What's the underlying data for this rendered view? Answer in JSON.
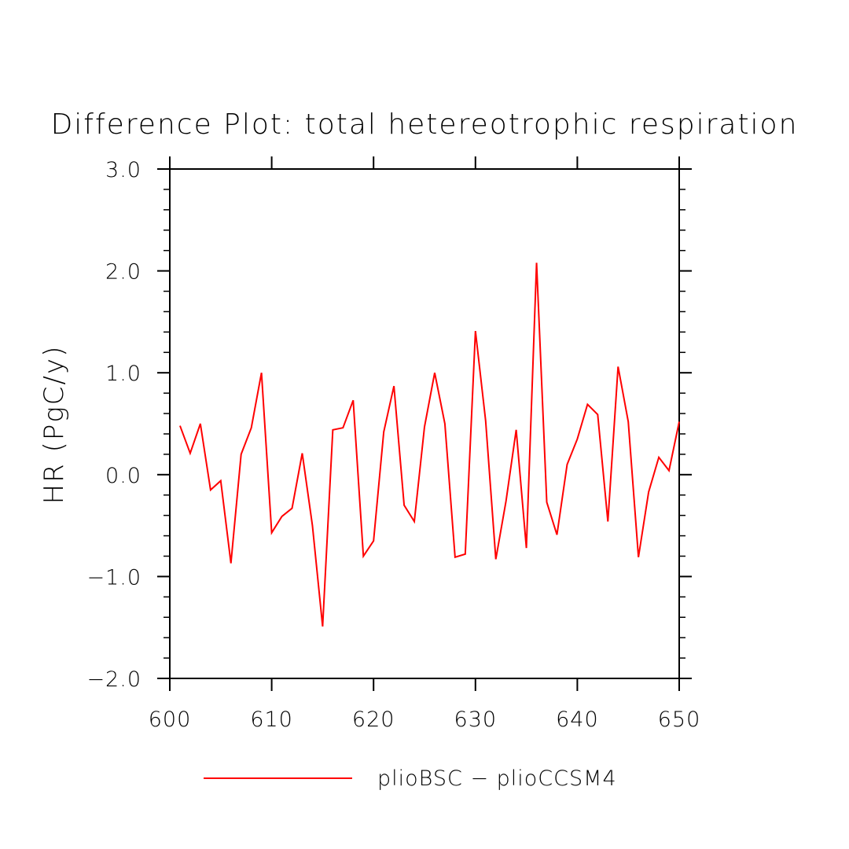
{
  "chart_data": {
    "type": "line",
    "title": "Difference Plot: total hetereotrophic respiration",
    "xlabel": "",
    "ylabel": "HR  (PgC/y)",
    "xlim": [
      600,
      650
    ],
    "ylim": [
      -2.0,
      3.0
    ],
    "x_ticks": [
      600,
      610,
      620,
      630,
      640,
      650
    ],
    "x_tick_labels": [
      "600",
      "610",
      "620",
      "630",
      "640",
      "650"
    ],
    "y_ticks": [
      -2.0,
      -1.0,
      0.0,
      1.0,
      2.0,
      3.0
    ],
    "y_tick_labels": [
      "−2.0",
      "−1.0",
      "0.0",
      "1.0",
      "2.0",
      "3.0"
    ],
    "grid": false,
    "legend_position": "bottom",
    "series": [
      {
        "name": "plioBSC − plioCCSM4",
        "color": "#ff0000",
        "x": [
          601,
          602,
          603,
          604,
          605,
          606,
          607,
          608,
          609,
          610,
          611,
          612,
          613,
          614,
          615,
          616,
          617,
          618,
          619,
          620,
          621,
          622,
          623,
          624,
          625,
          626,
          627,
          628,
          629,
          630,
          631,
          632,
          633,
          634,
          635,
          636,
          637,
          638,
          639,
          640,
          641,
          642,
          643,
          644,
          645,
          646,
          647,
          648,
          649,
          650
        ],
        "y": [
          0.48,
          0.21,
          0.5,
          -0.15,
          -0.06,
          -0.87,
          0.2,
          0.46,
          1.0,
          -0.57,
          -0.41,
          -0.33,
          0.21,
          -0.5,
          -1.49,
          0.44,
          0.46,
          0.73,
          -0.8,
          -0.65,
          0.42,
          0.87,
          -0.3,
          -0.46,
          0.47,
          1.0,
          0.5,
          -0.81,
          -0.78,
          1.41,
          0.53,
          -0.83,
          -0.26,
          0.44,
          -0.72,
          2.08,
          -0.27,
          -0.59,
          0.1,
          0.35,
          0.69,
          0.59,
          -0.46,
          1.06,
          0.52,
          -0.81,
          -0.17,
          0.17,
          0.04,
          0.52
        ]
      }
    ]
  }
}
